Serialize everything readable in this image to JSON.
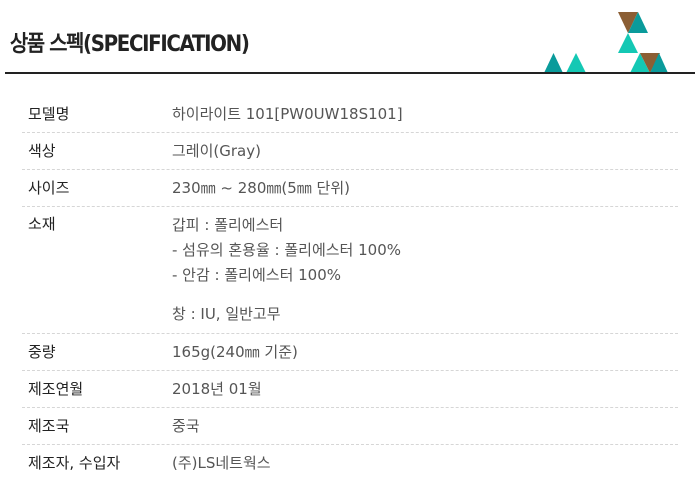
{
  "title": "상품 스펙(SPECIFICATION)",
  "colors": {
    "teal": "#0a9b9b",
    "mint": "#14c8b4",
    "brown": "#8b5e34",
    "rule": "#222222"
  },
  "rows": [
    {
      "label": "모델명",
      "value": "하이라이트 101[PW0UW18S101]"
    },
    {
      "label": "색상",
      "value": "그레이(Gray)"
    },
    {
      "label": "사이즈",
      "value": "230㎜ ~ 280㎜(5㎜ 단위)"
    },
    {
      "label": "소재",
      "lines": [
        "갑피 : 폴리에스터",
        "- 섬유의 혼용율 : 폴리에스터 100%",
        "- 안감 : 폴리에스터 100%"
      ],
      "extra": "창 : IU, 일반고무"
    },
    {
      "label": "중량",
      "value": "165g(240㎜ 기준)"
    },
    {
      "label": "제조연월",
      "value": "2018년 01월"
    },
    {
      "label": "제조국",
      "value": "중국"
    },
    {
      "label": "제조자, 수입자",
      "value": "(주)LS네트웍스"
    }
  ]
}
